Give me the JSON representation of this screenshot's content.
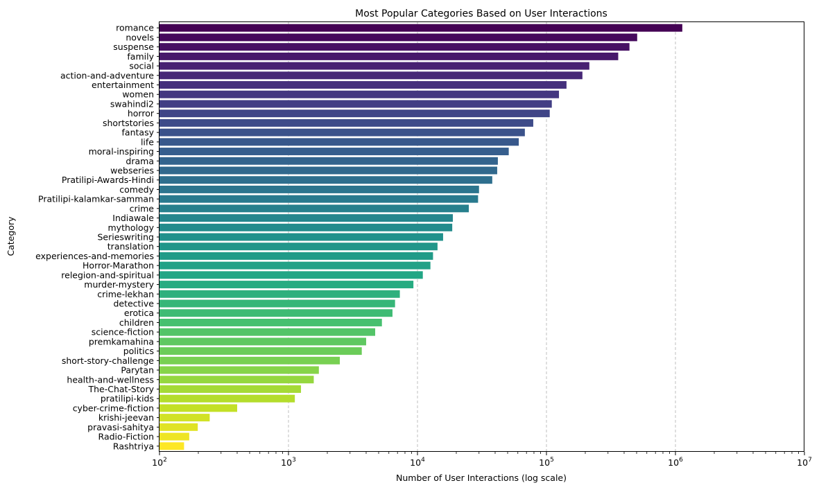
{
  "chart_data": {
    "type": "bar",
    "orientation": "horizontal",
    "title": "Most Popular Categories Based on User Interactions",
    "xlabel": "Number of User Interactions (log scale)",
    "ylabel": "Category",
    "xscale": "log",
    "xlim": [
      100,
      10000000
    ],
    "x_tick_labels": [
      {
        "base": "10",
        "exp": "2"
      },
      {
        "base": "10",
        "exp": "3"
      },
      {
        "base": "10",
        "exp": "4"
      },
      {
        "base": "10",
        "exp": "5"
      },
      {
        "base": "10",
        "exp": "6"
      },
      {
        "base": "10",
        "exp": "7"
      }
    ],
    "x_tick_values": [
      100,
      1000,
      10000,
      100000,
      1000000,
      10000000
    ],
    "grid": "x-axis, dashed",
    "colormap": "viridis",
    "categories": [
      "romance",
      "novels",
      "suspense",
      "family",
      "social",
      "action-and-adventure",
      "entertainment",
      "women",
      "swahindi2",
      "horror",
      "shortstories",
      "fantasy",
      "life",
      "moral-inspiring",
      "drama",
      "webseries",
      "Pratilipi-Awards-Hindi",
      "comedy",
      "Pratilipi-kalamkar-samman",
      "crime",
      "Indiawale",
      "mythology",
      "Serieswriting",
      "translation",
      "experiences-and-memories",
      "Horror-Marathon",
      "relegion-and-spiritual",
      "murder-mystery",
      "crime-lekhan",
      "detective",
      "erotica",
      "children",
      "science-fiction",
      "premkamahina",
      "politics",
      "short-story-challenge",
      "Parytan",
      "health-and-wellness",
      "The-Chat-Story",
      "pratilipi-kids",
      "cyber-crime-fiction",
      "krishi-jeevan",
      "pravasi-sahitya",
      "Radio-Fiction",
      "Rashtriya"
    ],
    "values": [
      1130000,
      505000,
      440000,
      360000,
      215000,
      190000,
      143000,
      125000,
      110000,
      106000,
      79000,
      68000,
      61000,
      51000,
      42000,
      41500,
      38000,
      30000,
      29500,
      25000,
      18800,
      18600,
      15800,
      14300,
      13200,
      12600,
      11000,
      9300,
      7300,
      6700,
      6400,
      5300,
      4700,
      4000,
      3700,
      2500,
      1720,
      1570,
      1250,
      1120,
      400,
      245,
      198,
      170,
      155
    ]
  }
}
